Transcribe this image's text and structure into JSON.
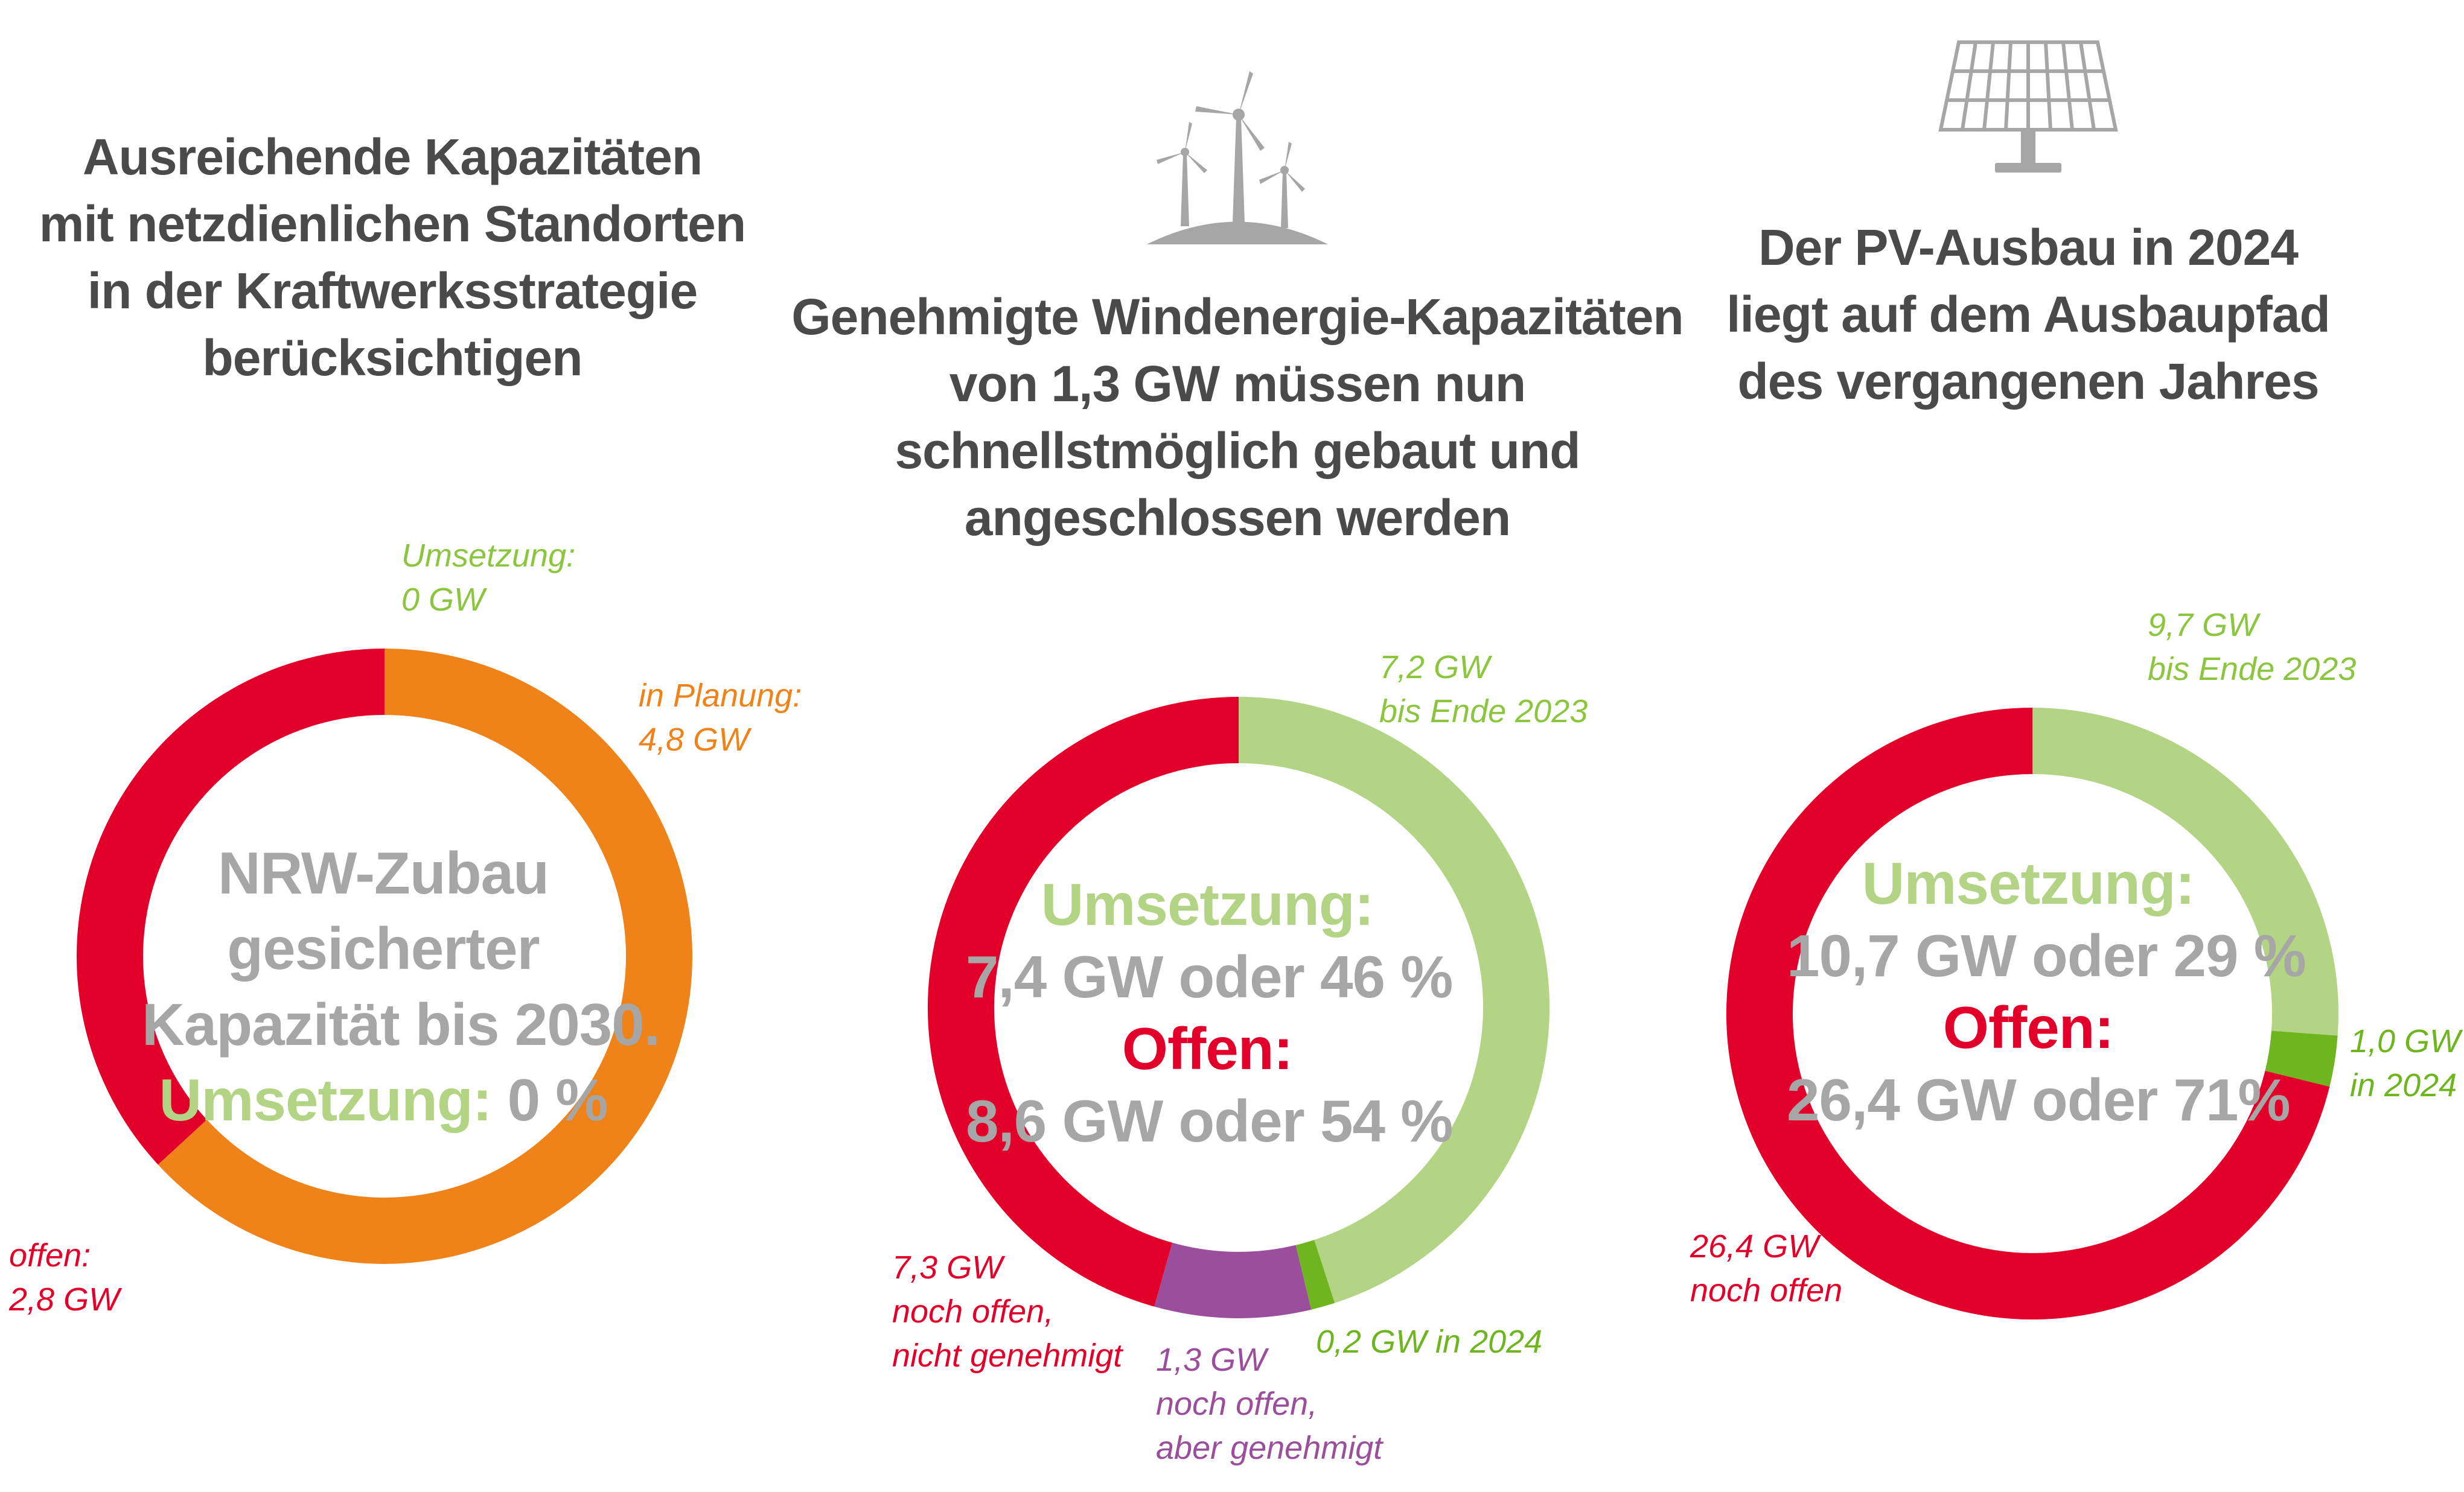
{
  "colors": {
    "red": "#e2002b",
    "orange": "#ef8319",
    "light_green": "#b4d485",
    "green": "#6fb51f",
    "purple": "#9a4e9b",
    "grey": "#a6a6a6",
    "dark_grey": "#4a4a4a"
  },
  "panels": [
    {
      "title_lines": [
        "Ausreichende Kapazitäten",
        "mit netzdienlichen Standorten",
        "in der Kraftwerksstrategie",
        "berücksichtigen"
      ],
      "center_lines": [
        "NRW-Zubau",
        "gesicherter",
        "Kapazität bis 2030."
      ],
      "center_umsetzung_label": "Umsetzung:",
      "center_umsetzung_value": "0 %",
      "labels": {
        "umsetzung": [
          "Umsetzung:",
          "0 GW"
        ],
        "planung": [
          "in Planung:",
          "4,8 GW"
        ],
        "offen": [
          "offen:",
          "2,8 GW"
        ]
      }
    },
    {
      "icon": "wind-turbines-icon",
      "title_lines": [
        "Genehmigte Windenergie-Kapazitäten",
        "von 1,3 GW müssen nun",
        "schnellstmöglich gebaut und",
        "angeschlossen werden"
      ],
      "center_umsetzung_label": "Umsetzung:",
      "center_umsetzung_value": "7,4 GW oder 46 %",
      "center_offen_label": "Offen:",
      "center_offen_value": "8,6 GW oder 54 %",
      "labels": {
        "bis2023": [
          "7,2 GW",
          "bis Ende 2023"
        ],
        "in2024": [
          "0,2 GW in 2024"
        ],
        "genehmigt": [
          "1,3 GW",
          "noch offen,",
          "aber genehmigt"
        ],
        "nicht_genehmigt": [
          "7,3 GW",
          "noch offen,",
          "nicht genehmigt"
        ]
      }
    },
    {
      "icon": "solar-panel-icon",
      "title_lines": [
        "Der PV-Ausbau in 2024",
        "liegt auf dem Ausbaupfad",
        "des vergangenen Jahres"
      ],
      "center_umsetzung_label": "Umsetzung:",
      "center_umsetzung_value": "10,7 GW oder 29 %",
      "center_offen_label": "Offen:",
      "center_offen_value": "26,4 GW oder 71%",
      "labels": {
        "bis2023": [
          "9,7 GW",
          "bis Ende 2023"
        ],
        "in2024": [
          "1,0 GW",
          "in 2024"
        ],
        "offen": [
          "26,4 GW",
          "noch offen"
        ]
      }
    }
  ],
  "chart_data": [
    {
      "type": "pie",
      "variant": "donut",
      "unit": "GW",
      "slices": [
        {
          "label": "Umsetzung",
          "value": 0,
          "color": "#b4d485"
        },
        {
          "label": "in Planung",
          "value": 4.8,
          "color": "#ef8319"
        },
        {
          "label": "offen",
          "value": 2.8,
          "color": "#e2002b"
        }
      ]
    },
    {
      "type": "pie",
      "variant": "donut",
      "unit": "GW",
      "slices": [
        {
          "label": "bis Ende 2023",
          "value": 7.2,
          "color": "#b4d485"
        },
        {
          "label": "in 2024",
          "value": 0.2,
          "color": "#6fb51f"
        },
        {
          "label": "noch offen, aber genehmigt",
          "value": 1.3,
          "color": "#9a4e9b"
        },
        {
          "label": "noch offen, nicht genehmigt",
          "value": 7.3,
          "color": "#e2002b"
        }
      ]
    },
    {
      "type": "pie",
      "variant": "donut",
      "unit": "GW",
      "slices": [
        {
          "label": "bis Ende 2023",
          "value": 9.7,
          "color": "#b4d485"
        },
        {
          "label": "in 2024",
          "value": 1.0,
          "color": "#6fb51f"
        },
        {
          "label": "noch offen",
          "value": 26.4,
          "color": "#e2002b"
        }
      ]
    }
  ]
}
